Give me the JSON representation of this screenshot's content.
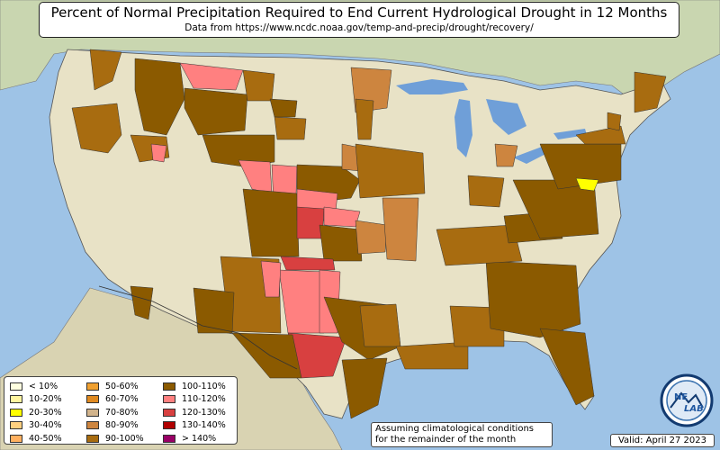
{
  "title": "Percent of Normal Precipitation Required to End Current Hydrological Drought in 12 Months",
  "subtitle": "Data from https://www.ncdc.noaa.gov/temp-and-precip/drought/recovery/",
  "legend": {
    "columns": [
      [
        {
          "label": "< 10%",
          "color": "#ffffe0"
        },
        {
          "label": "10-20%",
          "color": "#fff5a0"
        },
        {
          "label": "20-30%",
          "color": "#ffff00"
        },
        {
          "label": "30-40%",
          "color": "#ffd080"
        },
        {
          "label": "40-50%",
          "color": "#ffb060"
        }
      ],
      [
        {
          "label": "50-60%",
          "color": "#f0a030"
        },
        {
          "label": "60-70%",
          "color": "#e08a20"
        },
        {
          "label": "70-80%",
          "color": "#d2b48c"
        },
        {
          "label": "80-90%",
          "color": "#cd853f"
        },
        {
          "label": "90-100%",
          "color": "#a86c10"
        }
      ],
      [
        {
          "label": "100-110%",
          "color": "#8b5a00"
        },
        {
          "label": "110-120%",
          "color": "#ff8080"
        },
        {
          "label": "120-130%",
          "color": "#d84040"
        },
        {
          "label": "130-140%",
          "color": "#b00000"
        },
        {
          "label": "> 140%",
          "color": "#990066"
        }
      ]
    ]
  },
  "note": [
    "Assuming climatological conditions",
    "for the remainder of the month"
  ],
  "valid": "Valid: April 27 2023",
  "logo": {
    "text_top": "NE",
    "text_bottom": "LAB"
  },
  "colors": {
    "ocean": "#9ec3e6",
    "land": "#e8e2c6",
    "canada": "#c9d6b0",
    "lakes": "#6f9fd8",
    "c_100_110": "#8b5a00",
    "c_90_100": "#a86c10",
    "c_80_90": "#cd853f",
    "c_110_120": "#ff8080",
    "c_120_130": "#d84040",
    "c_20_30": "#ffff00"
  }
}
